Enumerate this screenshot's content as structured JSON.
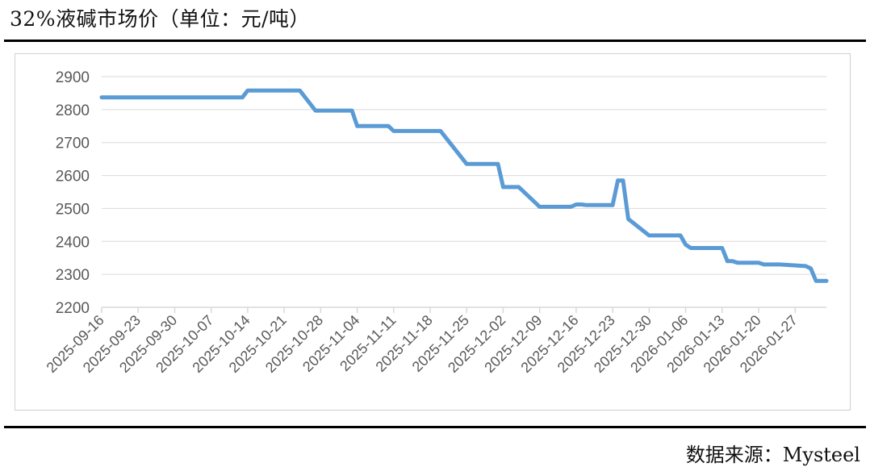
{
  "header": {
    "title": "32%液碱市场价（单位：元/吨）"
  },
  "footer": {
    "source": "数据来源：Mysteel"
  },
  "colors": {
    "line": "#5B9BD5",
    "grid": "#d9d9d9",
    "axis": "#d9d9d9",
    "text": "#595959"
  },
  "chart_data": {
    "type": "line",
    "title": "32%液碱市场价（单位：元/吨）",
    "xlabel": "",
    "ylabel": "",
    "ylim": [
      2200,
      2900
    ],
    "yticks": [
      2200,
      2300,
      2400,
      2500,
      2600,
      2700,
      2800,
      2900
    ],
    "xticks": [
      "2025-09-16",
      "2025-09-23",
      "2025-09-30",
      "2025-10-07",
      "2025-10-14",
      "2025-10-21",
      "2025-10-28",
      "2025-11-04",
      "2025-11-11",
      "2025-11-18",
      "2025-11-25",
      "2025-12-02",
      "2025-12-09",
      "2025-12-16",
      "2025-12-23",
      "2025-12-30",
      "2026-01-06",
      "2026-01-13",
      "2026-01-20",
      "2026-01-27"
    ],
    "xrange": [
      "2025-09-16",
      "2026-02-02"
    ],
    "grid": true,
    "legend": "none",
    "series": [
      {
        "points": [
          [
            "2025-09-16",
            2837
          ],
          [
            "2025-10-13",
            2837
          ],
          [
            "2025-10-14",
            2858
          ],
          [
            "2025-10-24",
            2858
          ],
          [
            "2025-10-27",
            2797
          ],
          [
            "2025-11-03",
            2797
          ],
          [
            "2025-11-04",
            2750
          ],
          [
            "2025-11-10",
            2750
          ],
          [
            "2025-11-11",
            2735
          ],
          [
            "2025-11-20",
            2735
          ],
          [
            "2025-11-25",
            2635
          ],
          [
            "2025-12-01",
            2635
          ],
          [
            "2025-12-02",
            2565
          ],
          [
            "2025-12-05",
            2565
          ],
          [
            "2025-12-09",
            2505
          ],
          [
            "2025-12-15",
            2505
          ],
          [
            "2025-12-16",
            2512
          ],
          [
            "2025-12-17",
            2512
          ],
          [
            "2025-12-18",
            2510
          ],
          [
            "2025-12-23",
            2510
          ],
          [
            "2025-12-24",
            2585
          ],
          [
            "2025-12-25",
            2585
          ],
          [
            "2025-12-26",
            2468
          ],
          [
            "2025-12-30",
            2418
          ],
          [
            "2026-01-05",
            2418
          ],
          [
            "2026-01-06",
            2390
          ],
          [
            "2026-01-07",
            2380
          ],
          [
            "2026-01-13",
            2380
          ],
          [
            "2026-01-14",
            2340
          ],
          [
            "2026-01-15",
            2340
          ],
          [
            "2026-01-16",
            2335
          ],
          [
            "2026-01-20",
            2335
          ],
          [
            "2026-01-21",
            2330
          ],
          [
            "2026-01-24",
            2330
          ],
          [
            "2026-01-29",
            2325
          ],
          [
            "2026-01-30",
            2318
          ],
          [
            "2026-01-31",
            2280
          ],
          [
            "2026-02-02",
            2280
          ]
        ]
      }
    ]
  }
}
